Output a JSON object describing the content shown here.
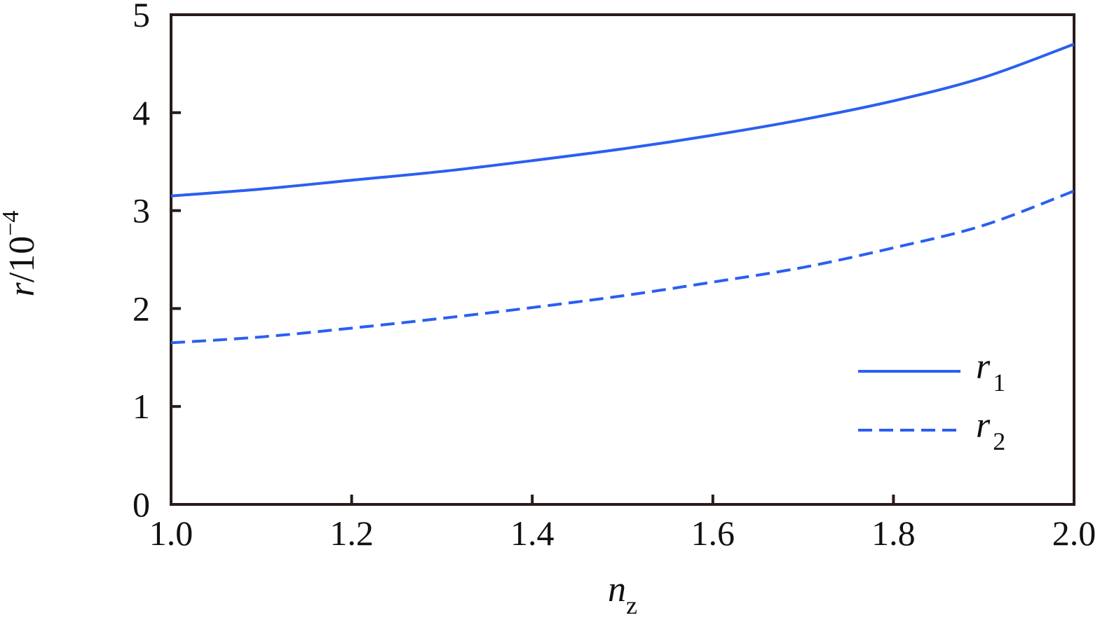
{
  "chart_data": {
    "type": "line",
    "xlabel": "n",
    "xlabel_sub": "z",
    "ylabel": {
      "var": "r",
      "sep": "/",
      "base": "10",
      "exp": "−4"
    },
    "xlim": [
      1.0,
      2.0
    ],
    "ylim": [
      0,
      5
    ],
    "x_ticks": [
      "1.0",
      "1.2",
      "1.4",
      "1.6",
      "1.8",
      "2.0"
    ],
    "y_ticks": [
      "0",
      "1",
      "2",
      "3",
      "4",
      "5"
    ],
    "grid": false,
    "legend_position": "bottom-right",
    "x": [
      1.0,
      1.1,
      1.2,
      1.3,
      1.4,
      1.5,
      1.6,
      1.7,
      1.8,
      1.9,
      2.0
    ],
    "series": [
      {
        "name": "r",
        "name_sub": "1",
        "style": "solid",
        "color": "#2a5ff0",
        "values": [
          3.15,
          3.22,
          3.31,
          3.4,
          3.51,
          3.63,
          3.77,
          3.93,
          4.12,
          4.36,
          4.7
        ]
      },
      {
        "name": "r",
        "name_sub": "2",
        "style": "dashed",
        "color": "#2a5ff0",
        "values": [
          1.65,
          1.71,
          1.8,
          1.9,
          2.01,
          2.13,
          2.27,
          2.42,
          2.62,
          2.85,
          3.2
        ]
      }
    ]
  }
}
